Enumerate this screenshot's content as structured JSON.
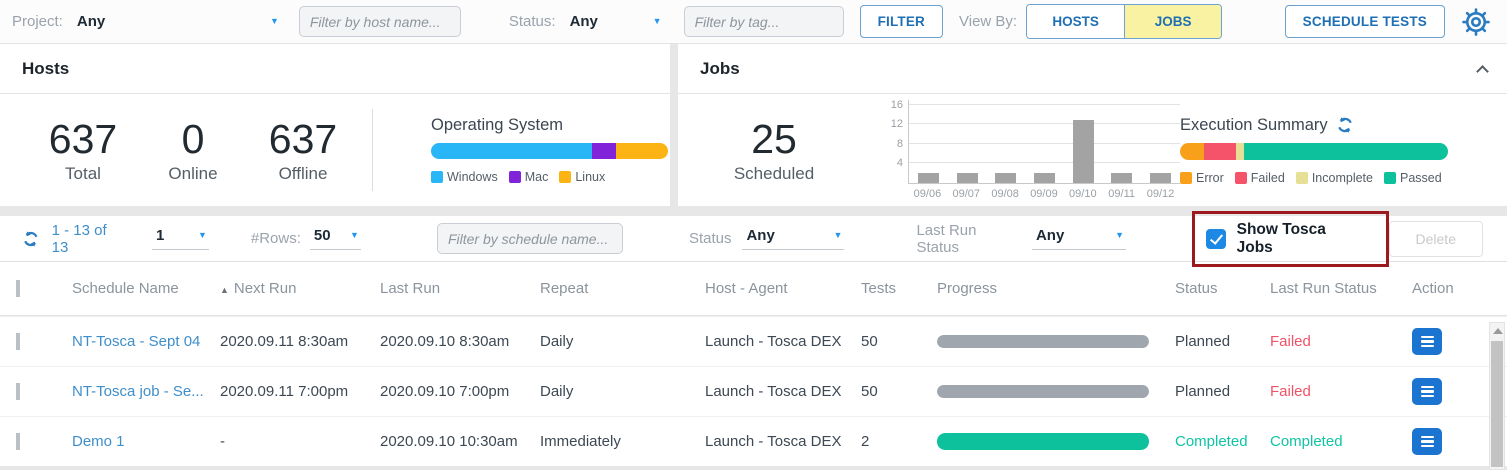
{
  "icons": {
    "caret_down": "▼",
    "sort_asc": "▲"
  },
  "topbar": {
    "project_label": "Project:",
    "project_value": "Any",
    "host_filter_placeholder": "Filter by host name...",
    "status_label": "Status:",
    "status_value": "Any",
    "tag_filter_placeholder": "Filter by tag...",
    "filter_button": "FILTER",
    "view_by_label": "View By:",
    "hosts_toggle": "HOSTS",
    "jobs_toggle": "JOBS",
    "schedule_tests_button": "SCHEDULE TESTS"
  },
  "hosts_panel": {
    "title": "Hosts",
    "stats": [
      {
        "value": "637",
        "label": "Total"
      },
      {
        "value": "0",
        "label": "Online"
      },
      {
        "value": "637",
        "label": "Offline"
      }
    ],
    "os_chart_title": "Operating System"
  },
  "jobs_panel": {
    "title": "Jobs",
    "scheduled_value": "25",
    "scheduled_label": "Scheduled",
    "execution_summary_title": "Execution Summary"
  },
  "toolbar": {
    "range_text": "1 - 13 of 13",
    "page_value": "1",
    "rows_label": "#Rows:",
    "rows_value": "50",
    "schedule_filter_placeholder": "Filter by schedule name...",
    "status_label": "Status",
    "status_value": "Any",
    "last_run_status_label": "Last Run Status",
    "last_run_status_value": "Any",
    "show_tosca_label": "Show Tosca Jobs",
    "delete_button": "Delete"
  },
  "table": {
    "headers": {
      "schedule_name": "Schedule Name",
      "next_run": "Next Run",
      "last_run": "Last Run",
      "repeat": "Repeat",
      "host_agent": "Host - Agent",
      "tests": "Tests",
      "progress": "Progress",
      "status": "Status",
      "last_run_status": "Last Run Status",
      "action": "Action"
    },
    "rows": [
      {
        "schedule_name": "NT-Tosca - Sept 04",
        "next_run": "2020.09.11 8:30am",
        "last_run": "2020.09.10 8:30am",
        "repeat": "Daily",
        "host_agent": "Launch - Tosca DEX",
        "tests": "50",
        "progress_pct": 100,
        "progress_color": "#9fa6ad",
        "status": "Planned",
        "status_color": "#3c4853",
        "last_run_status": "Failed",
        "last_run_status_color": "#ef5368"
      },
      {
        "schedule_name": "NT-Tosca job - Se...",
        "next_run": "2020.09.11 7:00pm",
        "last_run": "2020.09.10 7:00pm",
        "repeat": "Daily",
        "host_agent": "Launch - Tosca DEX",
        "tests": "50",
        "progress_pct": 100,
        "progress_color": "#9fa6ad",
        "status": "Planned",
        "status_color": "#3c4853",
        "last_run_status": "Failed",
        "last_run_status_color": "#ef5368"
      },
      {
        "schedule_name": "Demo 1",
        "next_run": "-",
        "last_run": "2020.09.10 10:30am",
        "repeat": "Immediately",
        "host_agent": "Launch - Tosca DEX",
        "tests": "2",
        "progress_pct": 100,
        "progress_color": "#0dc19c",
        "progress_thick": true,
        "status": "Completed",
        "status_color": "#10c3a4",
        "last_run_status": "Completed",
        "last_run_status_color": "#10c3a4"
      }
    ]
  },
  "chart_data": [
    {
      "type": "bar",
      "variant": "stacked-horizontal",
      "title": "Operating System",
      "categories": [
        "Windows",
        "Mac",
        "Linux"
      ],
      "values": [
        68,
        10,
        22
      ],
      "unit": "percent of hosts",
      "colors": [
        "#29b6f6",
        "#8123d8",
        "#fcb415"
      ],
      "legend_position": "bottom"
    },
    {
      "type": "bar",
      "title": "Scheduled jobs per day",
      "categories": [
        "09/06",
        "09/07",
        "09/08",
        "09/09",
        "09/10",
        "09/11",
        "09/12"
      ],
      "values": [
        2,
        2,
        2,
        2,
        13,
        2,
        2
      ],
      "ylim": [
        0,
        17
      ],
      "yticks": [
        4,
        8,
        12,
        16
      ],
      "bar_color": "#a3a3a3",
      "grid": true,
      "xlabel": "",
      "ylabel": ""
    },
    {
      "type": "bar",
      "variant": "stacked-horizontal",
      "title": "Execution Summary",
      "categories": [
        "Error",
        "Failed",
        "Incomplete",
        "Passed"
      ],
      "values": [
        9,
        12,
        3,
        76
      ],
      "unit": "percent of executions",
      "colors": [
        "#f9a01b",
        "#f4536a",
        "#e6e096",
        "#0dc19c"
      ],
      "legend_position": "bottom"
    }
  ]
}
